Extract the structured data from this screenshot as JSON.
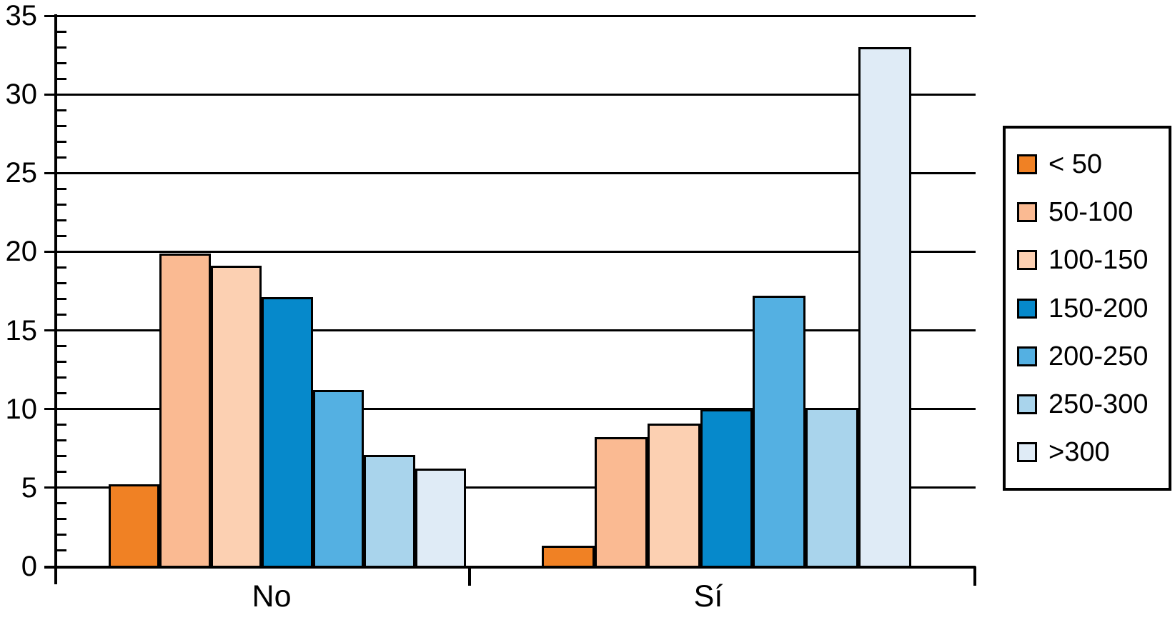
{
  "chart_data": {
    "type": "bar",
    "categories": [
      "No",
      "Sí"
    ],
    "series": [
      {
        "name": "< 50",
        "color": "#F08124",
        "values": [
          5.2,
          1.3
        ]
      },
      {
        "name": "50-100",
        "color": "#FABA92",
        "values": [
          19.9,
          8.2
        ]
      },
      {
        "name": "100-150",
        "color": "#FCD0B2",
        "values": [
          19.1,
          9.1
        ]
      },
      {
        "name": "150-200",
        "color": "#0689CB",
        "values": [
          17.1,
          10.0
        ]
      },
      {
        "name": "200-250",
        "color": "#54B0E2",
        "values": [
          11.2,
          17.2
        ]
      },
      {
        "name": "250-300",
        "color": "#A9D4EC",
        "values": [
          7.1,
          10.1
        ]
      },
      {
        "name": ">300",
        "color": "#DFEBF6",
        "values": [
          6.2,
          33.0
        ]
      }
    ],
    "ylim": [
      0,
      35
    ],
    "yticks": [
      0,
      5,
      10,
      15,
      20,
      25,
      30,
      35
    ],
    "minor_tick_interval": 1,
    "grid": true,
    "legend_position": "right",
    "axis_color": "#000000",
    "title": "",
    "xlabel": "",
    "ylabel": ""
  }
}
